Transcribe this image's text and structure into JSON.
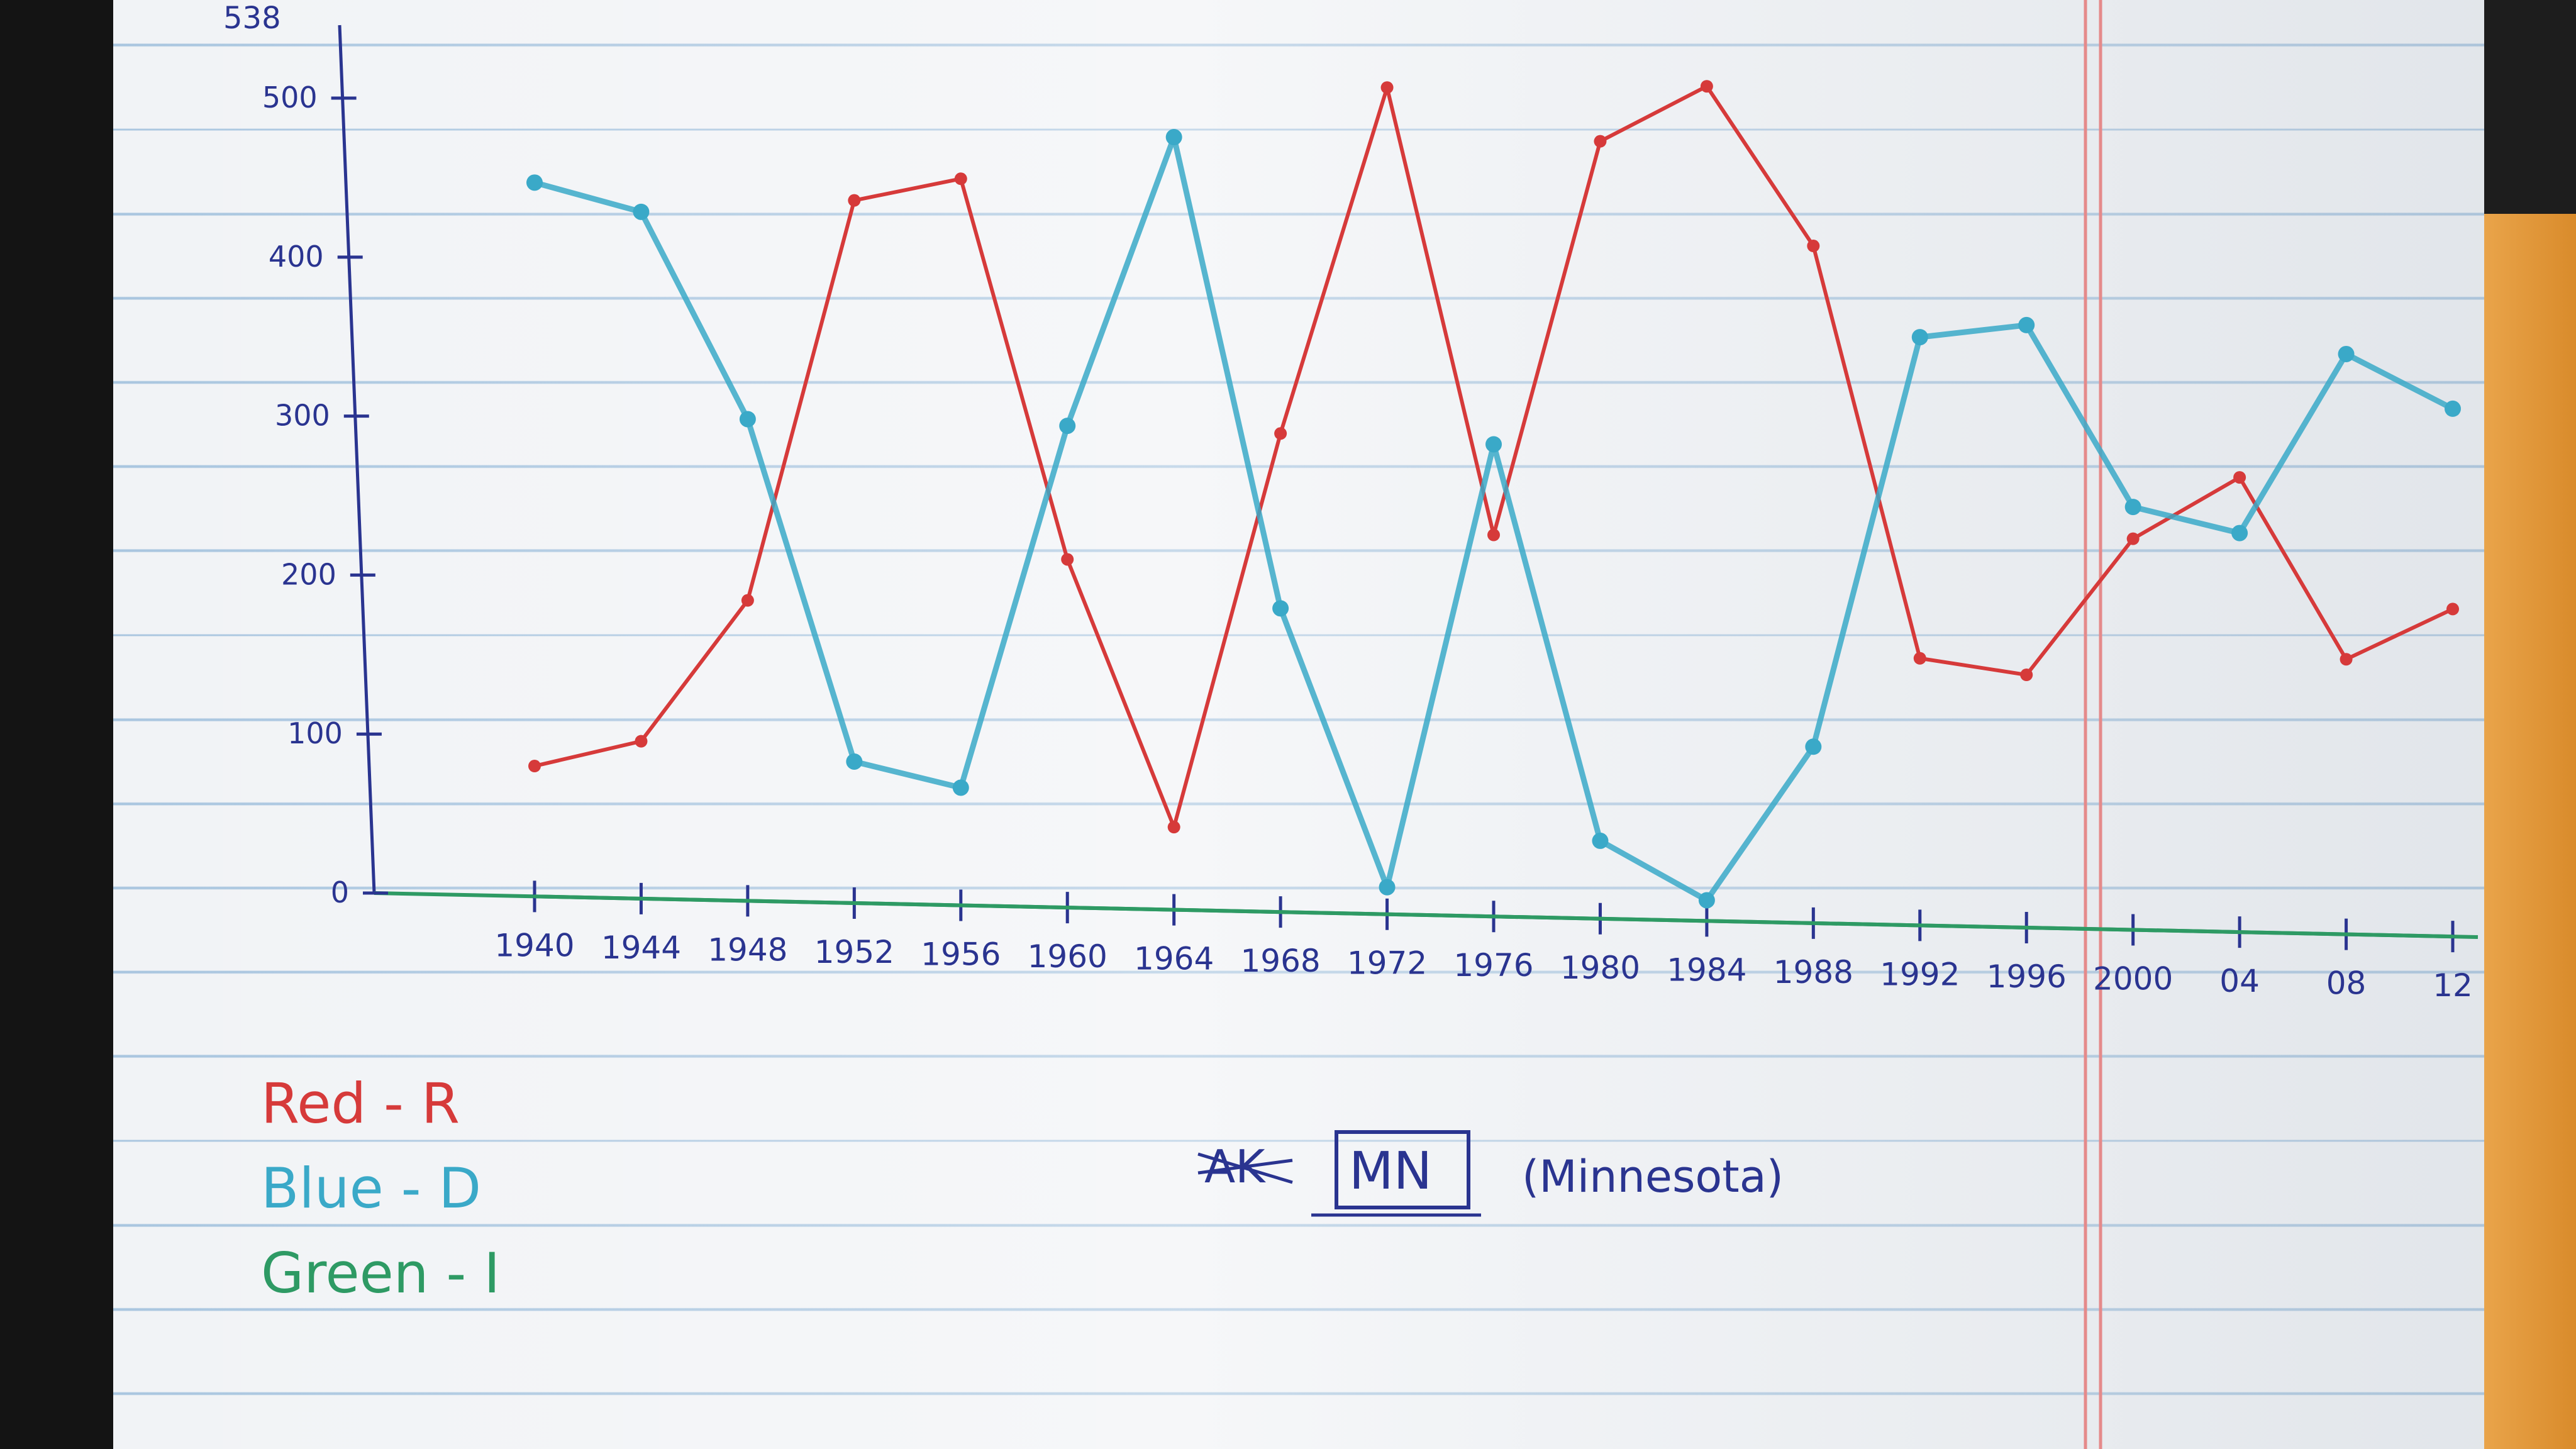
{
  "chart_data": {
    "type": "line",
    "title": "",
    "xlabel": "",
    "ylabel": "",
    "ylim": [
      0,
      538
    ],
    "y_top_label": "538",
    "y_ticks": [
      "0",
      "100",
      "200",
      "300",
      "400",
      "500"
    ],
    "x_tick_labels": [
      "1940",
      "1944",
      "1948",
      "1952",
      "1956",
      "1960",
      "1964",
      "1968",
      "1972",
      "1976",
      "1980",
      "1984",
      "1988",
      "1992",
      "1996",
      "2000",
      "04",
      "08",
      "12"
    ],
    "x": [
      1940,
      1944,
      1948,
      1952,
      1956,
      1960,
      1964,
      1968,
      1972,
      1976,
      1980,
      1984,
      1988,
      1992,
      1996,
      2000,
      2004,
      2008,
      2012
    ],
    "series": [
      {
        "name": "R",
        "color": "#d63a3a",
        "values": [
          82,
          99,
          189,
          442,
          457,
          219,
          52,
          301,
          520,
          240,
          489,
          525,
          426,
          168,
          159,
          246,
          286,
          173,
          206
        ]
      },
      {
        "name": "D",
        "color": "#3aa9c8",
        "values": [
          449,
          432,
          303,
          89,
          74,
          303,
          486,
          191,
          17,
          297,
          49,
          13,
          111,
          370,
          379,
          266,
          251,
          365,
          332
        ]
      },
      {
        "name": "I",
        "color": "#2e9a64",
        "values": [
          0,
          0,
          0,
          0,
          0,
          0,
          0,
          0,
          0,
          0,
          0,
          0,
          0,
          0,
          0,
          0,
          0,
          0,
          0
        ]
      }
    ],
    "grid": false,
    "legend_position": "bottom-left"
  },
  "legend": [
    {
      "text": "Red - R",
      "color": "#d63a3a"
    },
    {
      "text": "Blue - D",
      "color": "#3aa9c8"
    },
    {
      "text": "Green - I",
      "color": "#2e9a64"
    }
  ],
  "annotation": {
    "crossed_text": "AK",
    "boxed_text": "MN",
    "paren_text": "(Minnesota)"
  }
}
